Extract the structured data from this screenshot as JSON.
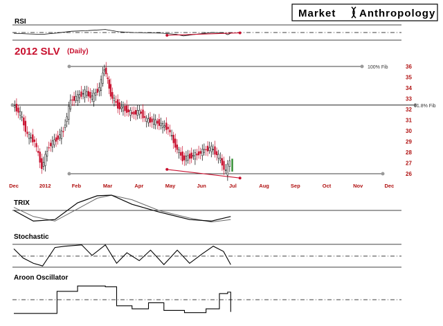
{
  "brand": {
    "word1": "Market",
    "word2": "Anthropology"
  },
  "colors": {
    "up": "#000000",
    "down": "#c8102e",
    "trend": "#c8102e",
    "axis": "#b01010",
    "grid": "#000000"
  },
  "chart_data": {
    "type": "candlestick",
    "title": "2012 SLV",
    "subtitle": "(Daily)",
    "ylim": [
      25.5,
      36.5
    ],
    "y_ticks": [
      26,
      27,
      28,
      29,
      30,
      31,
      32,
      33,
      34,
      35,
      36
    ],
    "x_ticks": [
      "Dec",
      "2012",
      "Feb",
      "Mar",
      "Apr",
      "May",
      "Jun",
      "Jul",
      "Aug",
      "Sep",
      "Oct",
      "Nov",
      "Dec"
    ],
    "fib_levels": [
      {
        "label": "100% Fib",
        "value": 36.0
      },
      {
        "label": "61.8% Fib",
        "value": 32.4
      }
    ],
    "support_level": 26.0,
    "price_trendline": {
      "from": [
        "2012-04-28",
        26.4
      ],
      "to": [
        "2012-07-08",
        25.6
      ]
    },
    "price_closes": [
      {
        "date": "2011-12-01",
        "close": 32.4
      },
      {
        "date": "2011-12-08",
        "close": 31.6
      },
      {
        "date": "2011-12-15",
        "close": 29.6
      },
      {
        "date": "2011-12-22",
        "close": 29.0
      },
      {
        "date": "2011-12-29",
        "close": 26.6
      },
      {
        "date": "2012-01-05",
        "close": 28.6
      },
      {
        "date": "2012-01-12",
        "close": 29.2
      },
      {
        "date": "2012-01-19",
        "close": 30.0
      },
      {
        "date": "2012-01-26",
        "close": 32.8
      },
      {
        "date": "2012-02-02",
        "close": 33.2
      },
      {
        "date": "2012-02-09",
        "close": 33.6
      },
      {
        "date": "2012-02-16",
        "close": 33.1
      },
      {
        "date": "2012-02-23",
        "close": 34.0
      },
      {
        "date": "2012-02-28",
        "close": 35.9
      },
      {
        "date": "2012-03-05",
        "close": 33.4
      },
      {
        "date": "2012-03-12",
        "close": 32.3
      },
      {
        "date": "2012-03-19",
        "close": 32.0
      },
      {
        "date": "2012-03-26",
        "close": 31.6
      },
      {
        "date": "2012-04-02",
        "close": 31.8
      },
      {
        "date": "2012-04-09",
        "close": 31.0
      },
      {
        "date": "2012-04-16",
        "close": 30.9
      },
      {
        "date": "2012-04-23",
        "close": 30.6
      },
      {
        "date": "2012-04-30",
        "close": 30.2
      },
      {
        "date": "2012-05-07",
        "close": 28.6
      },
      {
        "date": "2012-05-14",
        "close": 27.4
      },
      {
        "date": "2012-05-21",
        "close": 27.6
      },
      {
        "date": "2012-05-28",
        "close": 27.8
      },
      {
        "date": "2012-06-04",
        "close": 28.2
      },
      {
        "date": "2012-06-11",
        "close": 28.4
      },
      {
        "date": "2012-06-18",
        "close": 27.6
      },
      {
        "date": "2012-06-25",
        "close": 26.2
      },
      {
        "date": "2012-06-29",
        "close": 27.2
      }
    ],
    "indicators": {
      "rsi": {
        "label": "RSI",
        "ylim": [
          0,
          100
        ],
        "trendline": {
          "from": [
            "2012-04-28",
            32
          ],
          "to": [
            "2012-07-08",
            48
          ]
        },
        "values": [
          {
            "date": "2011-12-01",
            "value": 45
          },
          {
            "date": "2011-12-15",
            "value": 41
          },
          {
            "date": "2011-12-29",
            "value": 38
          },
          {
            "date": "2012-01-12",
            "value": 47
          },
          {
            "date": "2012-01-26",
            "value": 58
          },
          {
            "date": "2012-02-09",
            "value": 62
          },
          {
            "date": "2012-02-28",
            "value": 70
          },
          {
            "date": "2012-03-12",
            "value": 55
          },
          {
            "date": "2012-03-26",
            "value": 50
          },
          {
            "date": "2012-04-09",
            "value": 48
          },
          {
            "date": "2012-04-23",
            "value": 46
          },
          {
            "date": "2012-05-07",
            "value": 38
          },
          {
            "date": "2012-05-14",
            "value": 28
          },
          {
            "date": "2012-05-28",
            "value": 40
          },
          {
            "date": "2012-06-11",
            "value": 50
          },
          {
            "date": "2012-06-22",
            "value": 48
          },
          {
            "date": "2012-06-26",
            "value": 36
          },
          {
            "date": "2012-06-29",
            "value": 45
          }
        ]
      },
      "trix": {
        "label": "TRIX",
        "lines": [
          {
            "date": "2011-12-01",
            "trix": 0.0,
            "signal": 0.1
          },
          {
            "date": "2011-12-20",
            "trix": -0.35,
            "signal": -0.2
          },
          {
            "date": "2012-01-10",
            "trix": -0.3,
            "signal": -0.35
          },
          {
            "date": "2012-02-01",
            "trix": 0.25,
            "signal": 0.05
          },
          {
            "date": "2012-02-20",
            "trix": 0.48,
            "signal": 0.4
          },
          {
            "date": "2012-03-05",
            "trix": 0.5,
            "signal": 0.5
          },
          {
            "date": "2012-03-25",
            "trix": 0.2,
            "signal": 0.35
          },
          {
            "date": "2012-04-20",
            "trix": -0.05,
            "signal": 0.0
          },
          {
            "date": "2012-05-20",
            "trix": -0.3,
            "signal": -0.25
          },
          {
            "date": "2012-06-10",
            "trix": -0.35,
            "signal": -0.38
          },
          {
            "date": "2012-06-29",
            "trix": -0.2,
            "signal": -0.3
          }
        ]
      },
      "stochastic": {
        "label": "Stochastic",
        "ylim": [
          0,
          100
        ],
        "values": [
          {
            "date": "2011-12-01",
            "value": 75
          },
          {
            "date": "2011-12-10",
            "value": 40
          },
          {
            "date": "2011-12-20",
            "value": 20
          },
          {
            "date": "2011-12-29",
            "value": 10
          },
          {
            "date": "2012-01-10",
            "value": 80
          },
          {
            "date": "2012-01-20",
            "value": 85
          },
          {
            "date": "2012-02-05",
            "value": 90
          },
          {
            "date": "2012-02-15",
            "value": 50
          },
          {
            "date": "2012-02-28",
            "value": 90
          },
          {
            "date": "2012-03-10",
            "value": 20
          },
          {
            "date": "2012-03-20",
            "value": 60
          },
          {
            "date": "2012-04-01",
            "value": 30
          },
          {
            "date": "2012-04-12",
            "value": 70
          },
          {
            "date": "2012-04-25",
            "value": 15
          },
          {
            "date": "2012-05-08",
            "value": 70
          },
          {
            "date": "2012-05-20",
            "value": 20
          },
          {
            "date": "2012-06-01",
            "value": 55
          },
          {
            "date": "2012-06-12",
            "value": 85
          },
          {
            "date": "2012-06-22",
            "value": 65
          },
          {
            "date": "2012-06-29",
            "value": 15
          }
        ]
      },
      "aroon": {
        "label": "Aroon Oscillator",
        "ylim": [
          -100,
          100
        ],
        "values": [
          {
            "date": "2011-12-01",
            "value": -90
          },
          {
            "date": "2012-01-05",
            "value": -90
          },
          {
            "date": "2012-01-12",
            "value": 55
          },
          {
            "date": "2012-02-01",
            "value": 90
          },
          {
            "date": "2012-02-28",
            "value": 85
          },
          {
            "date": "2012-03-10",
            "value": -40
          },
          {
            "date": "2012-03-25",
            "value": -60
          },
          {
            "date": "2012-04-10",
            "value": -20
          },
          {
            "date": "2012-04-25",
            "value": -70
          },
          {
            "date": "2012-05-15",
            "value": -85
          },
          {
            "date": "2012-06-05",
            "value": -60
          },
          {
            "date": "2012-06-18",
            "value": 40
          },
          {
            "date": "2012-06-26",
            "value": 50
          },
          {
            "date": "2012-06-29",
            "value": -80
          }
        ]
      }
    }
  }
}
